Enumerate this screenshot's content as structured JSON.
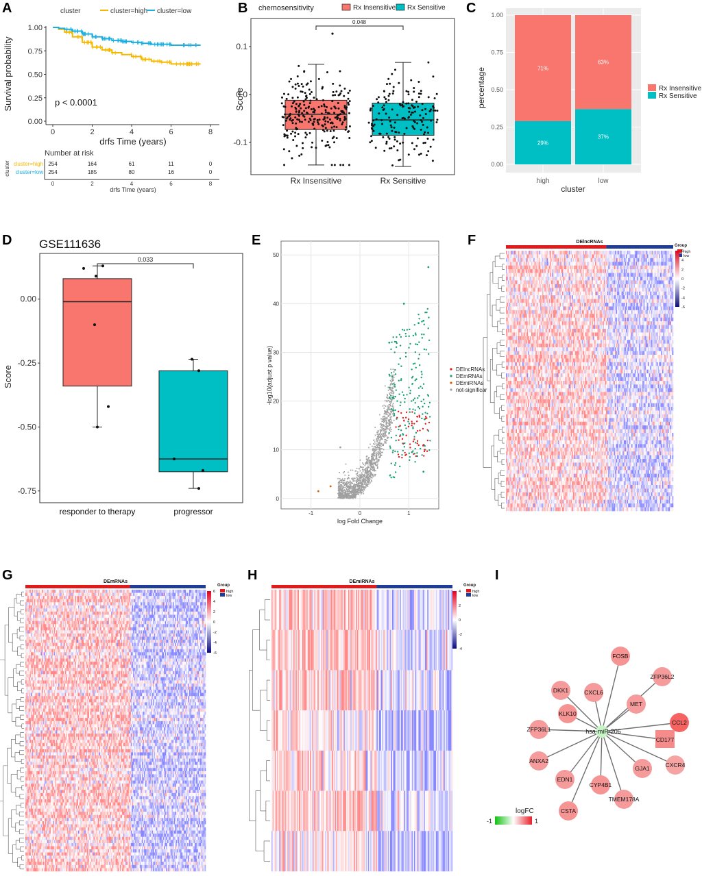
{
  "panels": {
    "A": "A",
    "B": "B",
    "C": "C",
    "D": "D",
    "E": "E",
    "F": "F",
    "G": "G",
    "H": "H",
    "I": "I"
  },
  "colors": {
    "high": "#F5B800",
    "low": "#1AAFE0",
    "insensitive": "#F8766D",
    "sensitive": "#00BFC4",
    "heat_high": "#E31A1C",
    "heat_low": "#1F3C96",
    "lnc": "#E41A1C",
    "mrna": "#1B9E77",
    "mirna": "#D95F02",
    "ns": "#A0A0A0"
  },
  "chart_data": [
    {
      "panel": "A",
      "type": "line",
      "legend_title": "cluster",
      "series": [
        {
          "name": "cluster=high",
          "x": [
            0,
            0.3,
            0.6,
            1,
            1.5,
            2,
            2.5,
            3,
            3.5,
            4,
            4.5,
            5,
            5.5,
            6,
            6.5,
            7,
            7.5
          ],
          "y": [
            1,
            0.98,
            0.95,
            0.9,
            0.84,
            0.79,
            0.76,
            0.73,
            0.71,
            0.69,
            0.66,
            0.64,
            0.63,
            0.61,
            0.61,
            0.61,
            0.61
          ]
        },
        {
          "name": "cluster=low",
          "x": [
            0,
            0.3,
            0.6,
            1,
            1.5,
            2,
            2.5,
            3,
            3.5,
            4,
            4.5,
            5,
            5.5,
            6,
            6.5,
            7,
            7.5
          ],
          "y": [
            1,
            0.99,
            0.98,
            0.96,
            0.93,
            0.9,
            0.88,
            0.86,
            0.85,
            0.84,
            0.83,
            0.82,
            0.82,
            0.81,
            0.81,
            0.81,
            0.81
          ]
        }
      ],
      "xlabel": "drfs Time (years)",
      "ylabel": "Survival probability",
      "xticks": [
        "0",
        "2",
        "4",
        "6",
        "8"
      ],
      "yticks": [
        "0.00",
        "0.25",
        "0.50",
        "0.75",
        "1.00"
      ],
      "xlim": [
        0,
        8
      ],
      "ylim": [
        0,
        1
      ],
      "pvalue": "p < 0.0001",
      "risk_table": {
        "title": "Number at risk",
        "ylabel": "cluster",
        "xlabel": "drfs Time (years)",
        "rows": [
          {
            "name": "cluster=high",
            "values": [
              "254",
              "164",
              "61",
              "11",
              "0"
            ]
          },
          {
            "name": "cluster=low",
            "values": [
              "254",
              "185",
              "80",
              "16",
              "0"
            ]
          }
        ],
        "xticks": [
          "0",
          "2",
          "4",
          "6",
          "8"
        ]
      }
    },
    {
      "panel": "B",
      "type": "box",
      "legend_title": "chemosensitivity",
      "groups": [
        {
          "name": "Rx Insensitive",
          "q1": -0.073,
          "median": -0.041,
          "q3": -0.012,
          "min": -0.147,
          "max": 0.063,
          "n": 254
        },
        {
          "name": "Rx Sensitive",
          "q1": -0.085,
          "median": -0.053,
          "q3": -0.018,
          "min": -0.15,
          "max": 0.067,
          "n": 170
        }
      ],
      "ylabel": "Score",
      "yticks": [
        "-0.1",
        "0.0",
        "0.1"
      ],
      "ylim": [
        -0.16,
        0.15
      ],
      "pvalue": "0.048"
    },
    {
      "panel": "C",
      "type": "bar",
      "categories": [
        "high",
        "low"
      ],
      "series": [
        {
          "name": "Rx Insensitive",
          "values": [
            0.71,
            0.63
          ],
          "labels": [
            "71%",
            "63%"
          ]
        },
        {
          "name": "Rx Sensitive",
          "values": [
            0.29,
            0.37
          ],
          "labels": [
            "29%",
            "37%"
          ]
        }
      ],
      "xlabel": "cluster",
      "ylabel": "percentage",
      "yticks": [
        "0.00",
        "0.25",
        "0.50",
        "0.75",
        "1.00"
      ],
      "ylim": [
        0,
        1
      ]
    },
    {
      "panel": "D",
      "type": "box",
      "title": "GSE111636",
      "groups": [
        {
          "name": "responder to therapy",
          "q1": -0.34,
          "median": -0.01,
          "q3": 0.08,
          "min": -0.5,
          "max": 0.13,
          "points": [
            0.13,
            0.12,
            0.09,
            -0.1,
            -0.42,
            -0.5
          ]
        },
        {
          "name": "progressor",
          "q1": -0.675,
          "median": -0.625,
          "q3": -0.28,
          "min": -0.74,
          "max": -0.235,
          "points": [
            -0.235,
            -0.28,
            -0.625,
            -0.67,
            -0.74
          ]
        }
      ],
      "ylabel": "Score",
      "yticks": [
        "0.00",
        "-0.25",
        "-0.50",
        "-0.75"
      ],
      "ylim": [
        -0.78,
        0.16
      ],
      "pvalue": "0.033"
    },
    {
      "panel": "E",
      "type": "scatter",
      "xlabel": "log Fold Change",
      "ylabel": "-log10(adjust p value)",
      "xticks": [
        "-1",
        "0",
        "1"
      ],
      "yticks": [
        "0",
        "10",
        "20",
        "30",
        "40",
        "50"
      ],
      "xlim": [
        -1.5,
        1.5
      ],
      "ylim": [
        -2,
        52
      ],
      "legend": [
        "DElncRNAs",
        "DEmRNAs",
        "DEmiRNAs",
        "not-significar"
      ],
      "highlights": [
        {
          "group": "DEmRNAs",
          "x": 1.4,
          "y": 47.5
        },
        {
          "group": "DEmRNAs",
          "x": 1.3,
          "y": 36.5
        },
        {
          "group": "DEmRNAs",
          "x": 1.2,
          "y": 36
        },
        {
          "group": "DEmRNAs",
          "x": 0.9,
          "y": 40
        },
        {
          "group": "DEmRNAs",
          "x": 0.6,
          "y": 32
        },
        {
          "group": "DEmRNAs",
          "x": 1.3,
          "y": 5.5
        },
        {
          "group": "DEmiRNAs",
          "x": -0.85,
          "y": 1.5
        },
        {
          "group": "DEmiRNAs",
          "x": -0.6,
          "y": 2.5
        },
        {
          "group": "not-significar",
          "x": -0.4,
          "y": 10.5
        }
      ]
    },
    {
      "panel": "F",
      "type": "heatmap",
      "title": "DElncRNAs",
      "legend_title": "Group",
      "groups": [
        "high",
        "low"
      ],
      "scale": [
        "6",
        "4",
        "2",
        "0",
        "-2",
        "-4",
        "-6"
      ]
    },
    {
      "panel": "G",
      "type": "heatmap",
      "title": "DEmRNAs",
      "legend_title": "Group",
      "groups": [
        "high",
        "low"
      ],
      "scale": [
        "6",
        "4",
        "2",
        "0",
        "-2",
        "-4",
        "-6"
      ]
    },
    {
      "panel": "H",
      "type": "heatmap",
      "title": "DEmiRNAs",
      "legend_title": "Group",
      "groups": [
        "high",
        "low"
      ],
      "scale": [
        "4",
        "2",
        "0",
        "-2",
        "-4"
      ]
    },
    {
      "panel": "I",
      "type": "network",
      "center": "hsa-miR-206",
      "nodes": [
        {
          "name": "FOSB",
          "shape": "circle",
          "logfc": 0.55
        },
        {
          "name": "ZFP36L2",
          "shape": "circle",
          "logfc": 0.5
        },
        {
          "name": "CCL2",
          "shape": "circle",
          "logfc": 0.85
        },
        {
          "name": "CD177",
          "shape": "square",
          "logfc": 0.6
        },
        {
          "name": "CXCR4",
          "shape": "circle",
          "logfc": 0.45
        },
        {
          "name": "GJA1",
          "shape": "circle",
          "logfc": 0.5
        },
        {
          "name": "TMEM178A",
          "shape": "circle",
          "logfc": 0.5
        },
        {
          "name": "CYP4B1",
          "shape": "circle",
          "logfc": 0.55
        },
        {
          "name": "CSTA",
          "shape": "circle",
          "logfc": 0.55
        },
        {
          "name": "EDN1",
          "shape": "circle",
          "logfc": 0.5
        },
        {
          "name": "ANXA2",
          "shape": "circle",
          "logfc": 0.5
        },
        {
          "name": "ZFP36L1",
          "shape": "circle",
          "logfc": 0.5
        },
        {
          "name": "KLK10",
          "shape": "circle",
          "logfc": 0.55
        },
        {
          "name": "DKK1",
          "shape": "circle",
          "logfc": 0.5
        },
        {
          "name": "CXCL6",
          "shape": "circle",
          "logfc": 0.5
        },
        {
          "name": "MET",
          "shape": "circle",
          "logfc": 0.5
        }
      ],
      "legend": {
        "title": "logFC",
        "min": "-1",
        "max": "1"
      }
    }
  ]
}
